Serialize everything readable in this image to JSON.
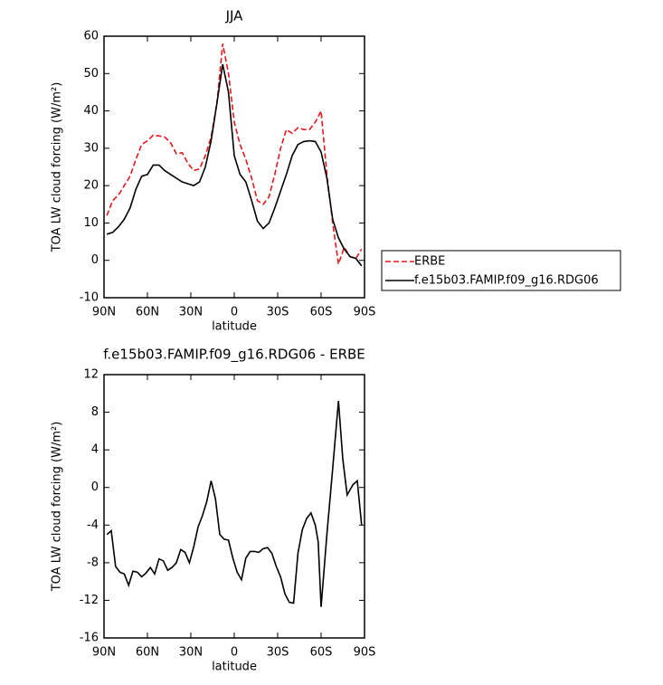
{
  "chart_data": [
    {
      "type": "line",
      "title": "JJA",
      "x_label": "latitude",
      "y_label": "TOA LW cloud forcing (W/m²)",
      "x": [
        88,
        84,
        80,
        76,
        72,
        68,
        64,
        60,
        56,
        52,
        48,
        44,
        40,
        36,
        32,
        28,
        24,
        20,
        16,
        12,
        8,
        4,
        0,
        -4,
        -8,
        -12,
        -16,
        -20,
        -24,
        -28,
        -32,
        -36,
        -40,
        -44,
        -48,
        -52,
        -56,
        -60,
        -64,
        -68,
        -72,
        -76,
        -80,
        -84,
        -88
      ],
      "series": [
        {
          "name": "ERBE",
          "color": "#e8161b",
          "line_style": "dashed",
          "values": [
            12,
            16,
            17.5,
            20,
            22.5,
            27,
            31,
            32,
            33.5,
            33.3,
            33,
            31.5,
            28.5,
            28.8,
            26,
            24,
            24.5,
            28,
            33,
            42,
            58,
            50,
            37,
            31,
            27,
            22,
            16,
            15,
            17,
            23,
            30,
            35,
            34,
            35.5,
            35,
            35,
            37,
            40,
            23,
            10,
            -1,
            3.5,
            1,
            0.5,
            3
          ]
        },
        {
          "name": "f.e15b03.FAMIP.f09_g16.RDG06",
          "color": "#000000",
          "line_style": "solid",
          "values": [
            7,
            7.5,
            9,
            11,
            14,
            19,
            22.5,
            23,
            25.5,
            25.5,
            24,
            23,
            22,
            21,
            20.5,
            20,
            21,
            25,
            32,
            42,
            52.5,
            45,
            28,
            23,
            21,
            16,
            10.5,
            8.5,
            10,
            14,
            18.5,
            23,
            28,
            31,
            31.8,
            32,
            31.8,
            29,
            22,
            11,
            6,
            3,
            1,
            0.5,
            -1.5
          ]
        }
      ],
      "xlim": [
        90,
        -90
      ],
      "xticks": [
        {
          "value": 90,
          "label": "90N"
        },
        {
          "value": 60,
          "label": "60N"
        },
        {
          "value": 30,
          "label": "30N"
        },
        0,
        {
          "value": -30,
          "label": "30S"
        },
        {
          "value": -60,
          "label": "60S"
        },
        {
          "value": -90,
          "label": "90S"
        }
      ],
      "ylim": [
        -10,
        60
      ],
      "yticks": [
        -10,
        0,
        10,
        20,
        30,
        40,
        50,
        60
      ],
      "legend": "right"
    },
    {
      "type": "line",
      "title": "f.e15b03.FAMIP.f09_g16.RDG06 - ERBE",
      "x_label": "latitude",
      "y_label": "TOA LW cloud forcing (W/m²)",
      "x": [
        88,
        85,
        82,
        79,
        76,
        73,
        70,
        67,
        64,
        61,
        58,
        55,
        52,
        49,
        46,
        43,
        40,
        37,
        34,
        31,
        28,
        25,
        22,
        19,
        16,
        13,
        10,
        7,
        4,
        1,
        -2,
        -5,
        -8,
        -11,
        -14,
        -17,
        -20,
        -23,
        -26,
        -29,
        -32,
        -35,
        -38,
        -41,
        -44,
        -47,
        -50,
        -53,
        -56,
        -58,
        -60,
        -64,
        -68,
        -72,
        -75,
        -78,
        -82,
        -85,
        -88
      ],
      "series": [
        {
          "color": "#000000",
          "line_style": "solid",
          "values": [
            -5,
            -4.6,
            -8.4,
            -9,
            -9.2,
            -10.4,
            -8.9,
            -9,
            -9.5,
            -9.1,
            -8.5,
            -9.2,
            -7.6,
            -7.8,
            -8.8,
            -8.5,
            -8,
            -6.6,
            -6.9,
            -8,
            -6.3,
            -4.2,
            -3,
            -1.5,
            0.7,
            -1.2,
            -5,
            -5.5,
            -5.6,
            -7.5,
            -9,
            -9.8,
            -7.5,
            -6.8,
            -6.8,
            -6.9,
            -6.5,
            -6.4,
            -7,
            -8.4,
            -9.5,
            -11.3,
            -12.2,
            -12.3,
            -7,
            -4.5,
            -3.3,
            -2.7,
            -4,
            -5.8,
            -12.7,
            -5,
            2,
            9.2,
            3,
            -0.8,
            0.3,
            0.7,
            -4
          ]
        }
      ],
      "xlim": [
        90,
        -90
      ],
      "xticks": [
        {
          "value": 90,
          "label": "90N"
        },
        {
          "value": 60,
          "label": "60N"
        },
        {
          "value": 30,
          "label": "30N"
        },
        0,
        {
          "value": -30,
          "label": "30S"
        },
        {
          "value": -60,
          "label": "60S"
        },
        {
          "value": -90,
          "label": "90S"
        }
      ],
      "ylim": [
        -16,
        12
      ],
      "yticks": [
        -16,
        -12,
        -8,
        -4,
        0,
        4,
        8,
        12
      ]
    }
  ]
}
